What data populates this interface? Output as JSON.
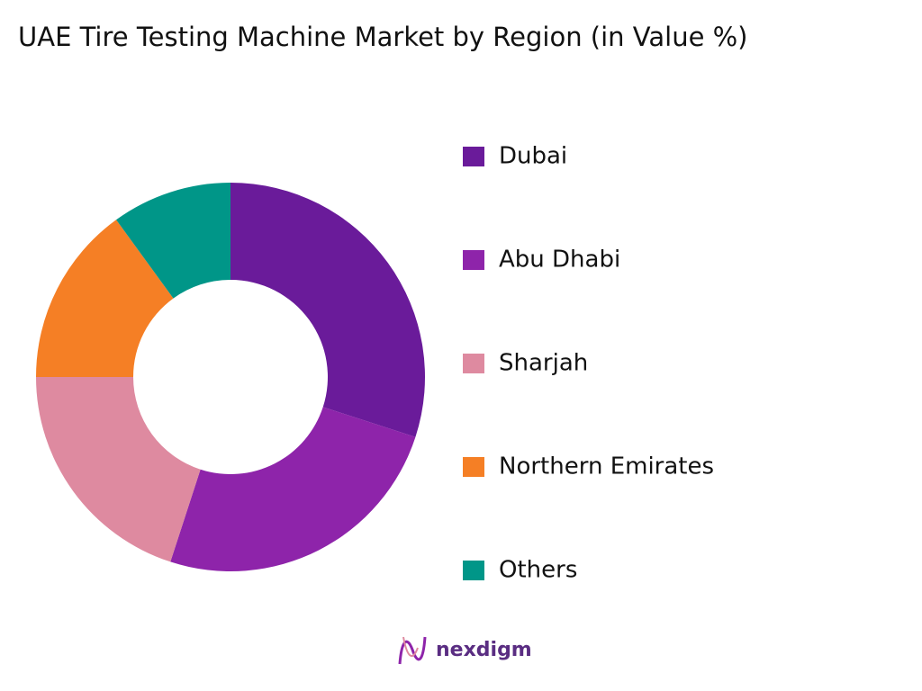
{
  "chart_data": {
    "type": "donut",
    "title": "UAE Tire Testing Machine Market by Region (in Value %)",
    "categories": [
      "Dubai",
      "Abu Dhabi",
      "Sharjah",
      "Northern Emirates",
      "Others"
    ],
    "values": [
      30,
      25,
      20,
      15,
      10
    ],
    "colors": [
      "#6a1b9a",
      "#8e24aa",
      "#de8aa0",
      "#f57f25",
      "#009688"
    ],
    "legend": "right"
  },
  "branding": "nexdigm"
}
